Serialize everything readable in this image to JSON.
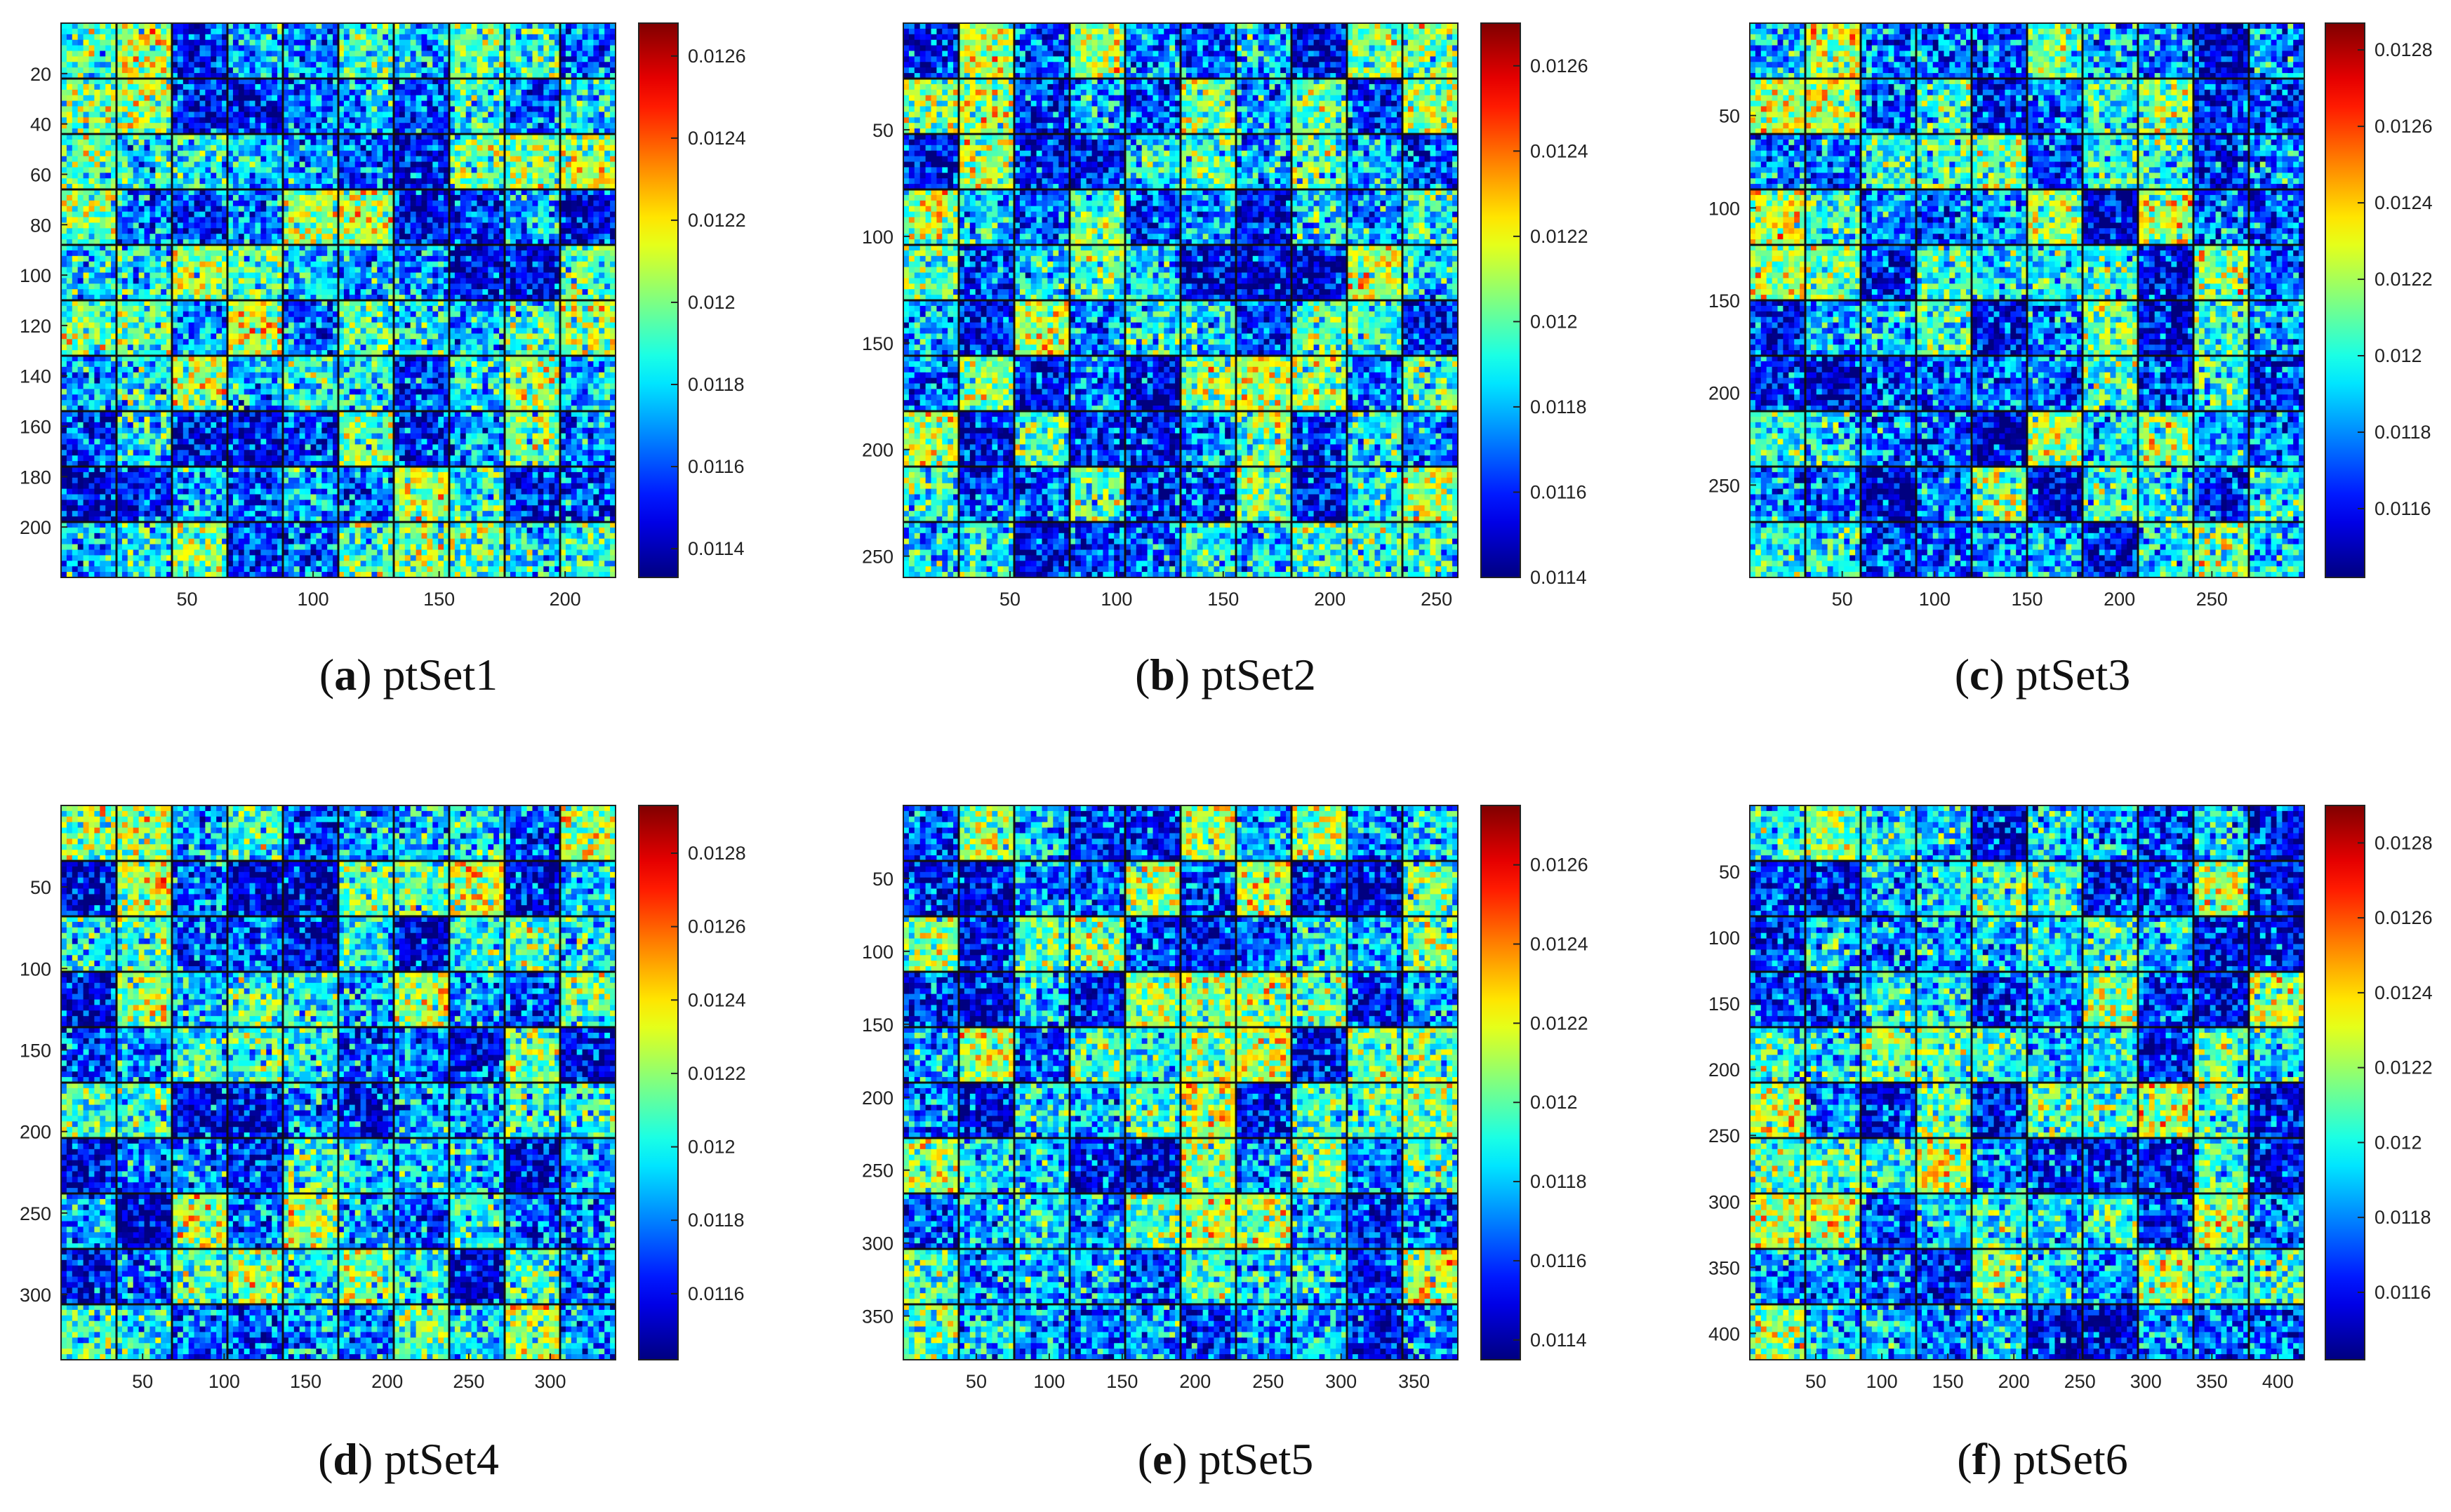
{
  "chart_data": [
    {
      "type": "heatmap",
      "panel": "a",
      "caption_letter": "a",
      "caption_text": "ptSet1",
      "grid": [
        10,
        10
      ],
      "xlim": [
        0,
        220
      ],
      "ylim": [
        0,
        220
      ],
      "xticks": [
        "50",
        "100",
        "150",
        "200"
      ],
      "xtick_values": [
        50,
        100,
        150,
        200
      ],
      "yticks": [
        "20",
        "40",
        "60",
        "80",
        "100",
        "120",
        "140",
        "160",
        "180",
        "200"
      ],
      "ytick_values": [
        20,
        40,
        60,
        80,
        100,
        120,
        140,
        160,
        180,
        200
      ],
      "colorbar_ticks": [
        "0.0126",
        "0.0124",
        "0.0122",
        "0.012",
        "0.0118",
        "0.0116",
        "0.0114"
      ],
      "colorbar_values": [
        0.0126,
        0.0124,
        0.0122,
        0.012,
        0.0118,
        0.0116,
        0.0114
      ],
      "clim": [
        0.01133,
        0.01268
      ],
      "colormap": "jet"
    },
    {
      "type": "heatmap",
      "panel": "b",
      "caption_letter": "b",
      "caption_text": "ptSet2",
      "grid": [
        10,
        10
      ],
      "xlim": [
        0,
        260
      ],
      "ylim": [
        0,
        260
      ],
      "xticks": [
        "50",
        "100",
        "150",
        "200",
        "250"
      ],
      "xtick_values": [
        50,
        100,
        150,
        200,
        250
      ],
      "yticks": [
        "50",
        "100",
        "150",
        "200",
        "250"
      ],
      "ytick_values": [
        50,
        100,
        150,
        200,
        250
      ],
      "colorbar_ticks": [
        "0.0126",
        "0.0124",
        "0.0122",
        "0.012",
        "0.0118",
        "0.0116",
        "0.0114"
      ],
      "colorbar_values": [
        0.0126,
        0.0124,
        0.0122,
        0.012,
        0.0118,
        0.0116,
        0.0114
      ],
      "clim": [
        0.0114,
        0.0127
      ],
      "colormap": "jet"
    },
    {
      "type": "heatmap",
      "panel": "c",
      "caption_letter": "c",
      "caption_text": "ptSet3",
      "grid": [
        10,
        10
      ],
      "xlim": [
        0,
        300
      ],
      "ylim": [
        0,
        300
      ],
      "xticks": [
        "50",
        "100",
        "150",
        "200",
        "250"
      ],
      "xtick_values": [
        50,
        100,
        150,
        200,
        250
      ],
      "yticks": [
        "50",
        "100",
        "150",
        "200",
        "250"
      ],
      "ytick_values": [
        50,
        100,
        150,
        200,
        250
      ],
      "colorbar_ticks": [
        "0.0128",
        "0.0126",
        "0.0124",
        "0.0122",
        "0.012",
        "0.0118",
        "0.0116"
      ],
      "colorbar_values": [
        0.0128,
        0.0126,
        0.0124,
        0.0122,
        0.012,
        0.0118,
        0.0116
      ],
      "clim": [
        0.01142,
        0.01287
      ],
      "colormap": "jet"
    },
    {
      "type": "heatmap",
      "panel": "d",
      "caption_letter": "d",
      "caption_text": "ptSet4",
      "grid": [
        10,
        10
      ],
      "xlim": [
        0,
        340
      ],
      "ylim": [
        0,
        340
      ],
      "xticks": [
        "50",
        "100",
        "150",
        "200",
        "250",
        "300"
      ],
      "xtick_values": [
        50,
        100,
        150,
        200,
        250,
        300
      ],
      "yticks": [
        "50",
        "100",
        "150",
        "200",
        "250",
        "300"
      ],
      "ytick_values": [
        50,
        100,
        150,
        200,
        250,
        300
      ],
      "colorbar_ticks": [
        "0.0128",
        "0.0126",
        "0.0124",
        "0.0122",
        "0.012",
        "0.0118",
        "0.0116"
      ],
      "colorbar_values": [
        0.0128,
        0.0126,
        0.0124,
        0.0122,
        0.012,
        0.0118,
        0.0116
      ],
      "clim": [
        0.01142,
        0.01293
      ],
      "colormap": "jet"
    },
    {
      "type": "heatmap",
      "panel": "e",
      "caption_letter": "e",
      "caption_text": "ptSet5",
      "grid": [
        10,
        10
      ],
      "xlim": [
        0,
        380
      ],
      "ylim": [
        0,
        380
      ],
      "xticks": [
        "50",
        "100",
        "150",
        "200",
        "250",
        "300",
        "350"
      ],
      "xtick_values": [
        50,
        100,
        150,
        200,
        250,
        300,
        350
      ],
      "yticks": [
        "50",
        "100",
        "150",
        "200",
        "250",
        "300",
        "350"
      ],
      "ytick_values": [
        50,
        100,
        150,
        200,
        250,
        300,
        350
      ],
      "colorbar_ticks": [
        "0.0126",
        "0.0124",
        "0.0122",
        "0.012",
        "0.0118",
        "0.0116",
        "0.0114"
      ],
      "colorbar_values": [
        0.0126,
        0.0124,
        0.0122,
        0.012,
        0.0118,
        0.0116,
        0.0114
      ],
      "clim": [
        0.01135,
        0.01275
      ],
      "colormap": "jet"
    },
    {
      "type": "heatmap",
      "panel": "f",
      "caption_letter": "f",
      "caption_text": "ptSet6",
      "grid": [
        10,
        10
      ],
      "xlim": [
        0,
        420
      ],
      "ylim": [
        0,
        420
      ],
      "xticks": [
        "50",
        "100",
        "150",
        "200",
        "250",
        "300",
        "350",
        "400"
      ],
      "xtick_values": [
        50,
        100,
        150,
        200,
        250,
        300,
        350,
        400
      ],
      "yticks": [
        "50",
        "100",
        "150",
        "200",
        "250",
        "300",
        "350",
        "400"
      ],
      "ytick_values": [
        50,
        100,
        150,
        200,
        250,
        300,
        350,
        400
      ],
      "colorbar_ticks": [
        "0.0128",
        "0.0126",
        "0.0124",
        "0.0122",
        "0.012",
        "0.0118",
        "0.0116"
      ],
      "colorbar_values": [
        0.0128,
        0.0126,
        0.0124,
        0.0122,
        0.012,
        0.0118,
        0.0116
      ],
      "clim": [
        0.01142,
        0.0129
      ],
      "colormap": "jet"
    }
  ]
}
